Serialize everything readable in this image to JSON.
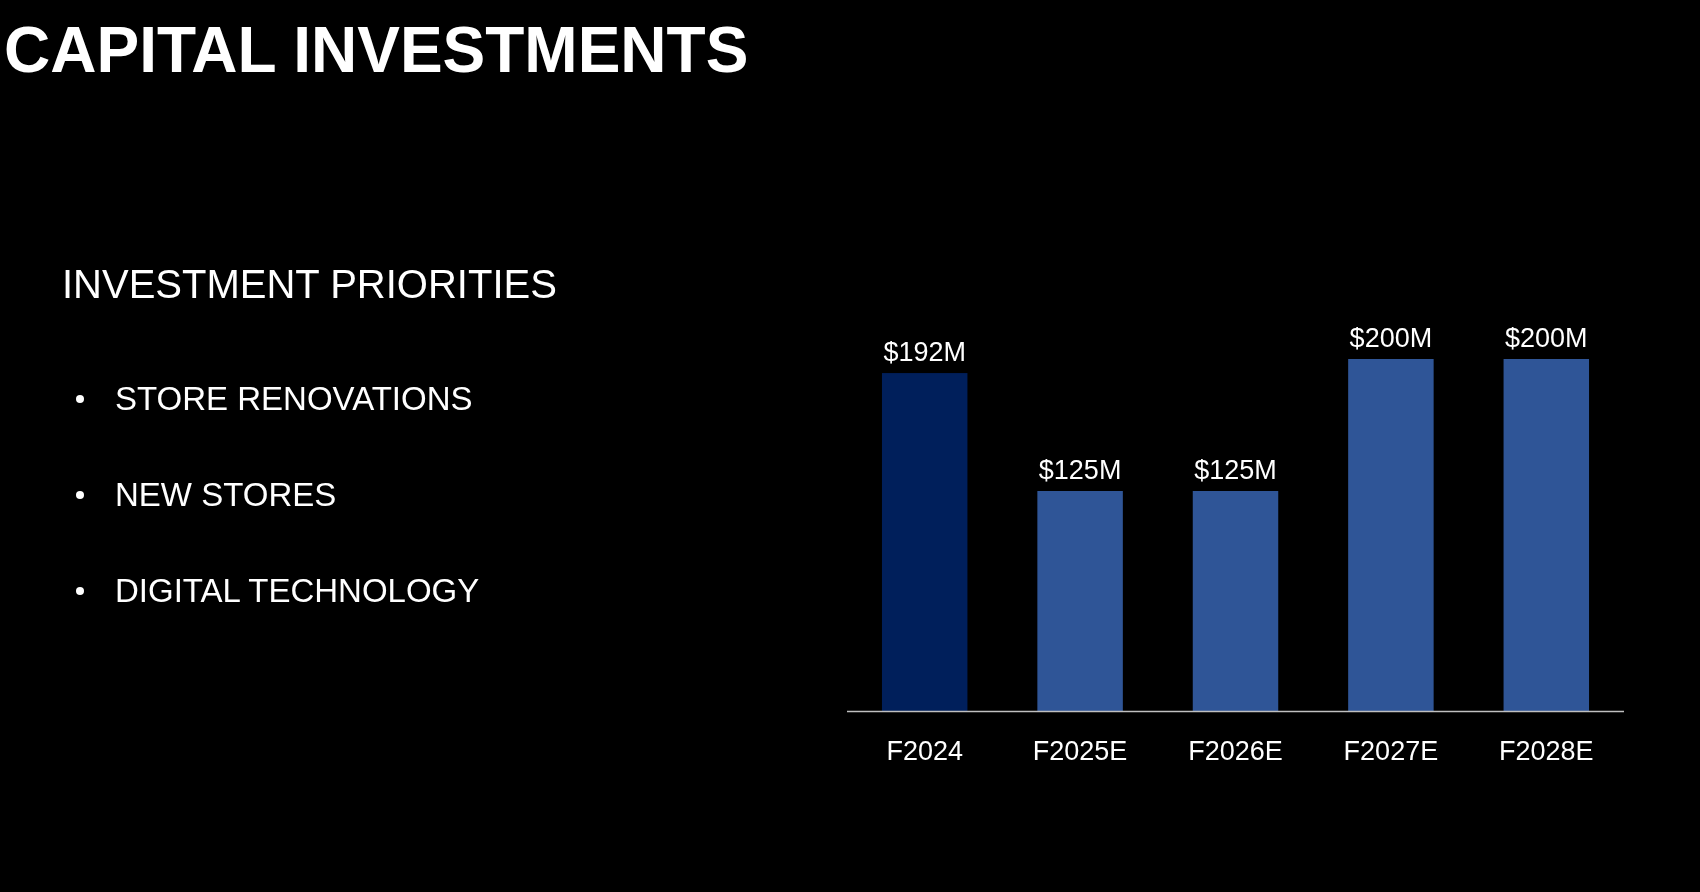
{
  "chart_data": [
    {
      "type": "other",
      "title": "CAPITAL INVESTMENTS",
      "subtitle": "INVESTMENT PRIORITIES",
      "annotations": [
        "STORE RENOVATIONS",
        "NEW STORES",
        "DIGITAL TECHNOLOGY"
      ]
    },
    {
      "type": "bar",
      "categories": [
        "F2024",
        "F2025E",
        "F2026E",
        "F2027E",
        "F2028E"
      ],
      "values": [
        192,
        125,
        125,
        200,
        200
      ],
      "colors": [
        "#001f5b",
        "#2f5597",
        "#2f5597",
        "#2f5597",
        "#2f5597"
      ],
      "value_labels": [
        "$192M",
        "$125M",
        "$125M",
        "$200M",
        "$200M"
      ]
    }
  ]
}
